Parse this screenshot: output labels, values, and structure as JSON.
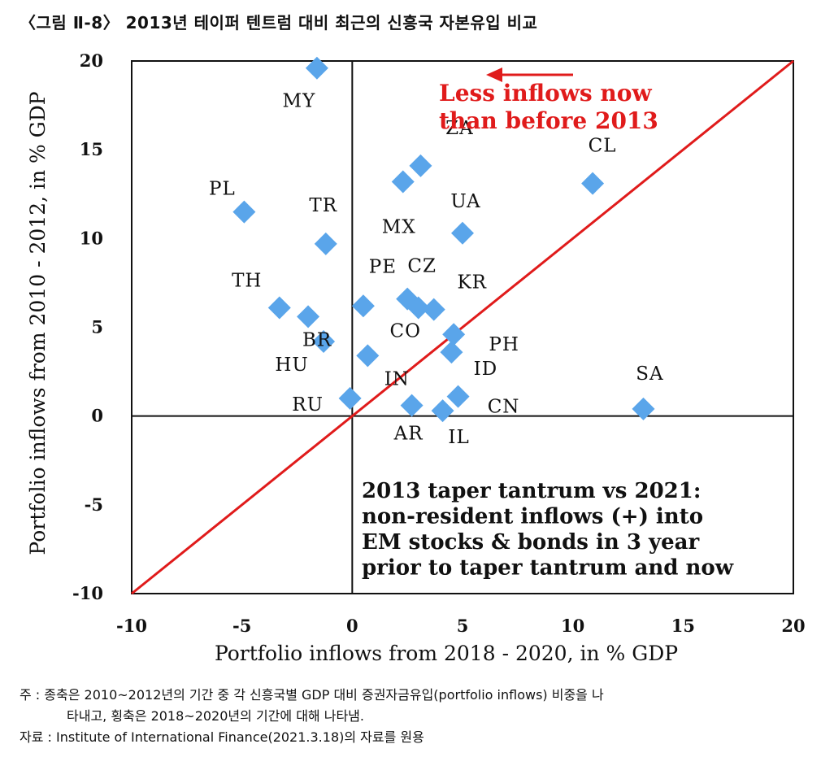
{
  "title": "〈그림 Ⅱ-8〉 2013년 테이퍼 텐트럼 대비 최근의 신흥국 자본유입 비교",
  "colors": {
    "point": "#5aa5ea",
    "diagonal": "#e01b1b",
    "annotation": "#e01b1b",
    "axis": "#111111"
  },
  "chart_data": {
    "type": "scatter",
    "xlabel": "Portfolio inflows from 2018 - 2020, in % GDP",
    "ylabel": "Portfolio inflows from 2010 - 2012, in % GDP",
    "xlim": [
      -10,
      20
    ],
    "ylim": [
      -10,
      20
    ],
    "xticks": [
      "-10",
      "-5",
      "0",
      "5",
      "10",
      "15",
      "20"
    ],
    "yticks": [
      "20",
      "15",
      "10",
      "5",
      "0",
      "-5",
      "-10"
    ],
    "grid": false,
    "reference_line": "y = x",
    "points": [
      {
        "label": "MY",
        "x": -1.6,
        "y": 19.6
      },
      {
        "label": "ZA",
        "x": 3.1,
        "y": 14.1
      },
      {
        "label": "MX",
        "x": 2.3,
        "y": 13.2
      },
      {
        "label": "CL",
        "x": 10.9,
        "y": 13.1
      },
      {
        "label": "PL",
        "x": -4.9,
        "y": 11.5
      },
      {
        "label": "UA",
        "x": 5.0,
        "y": 10.3
      },
      {
        "label": "TR",
        "x": -1.2,
        "y": 9.7
      },
      {
        "label": "PE",
        "x": 0.5,
        "y": 6.2
      },
      {
        "label": "CZ",
        "x": 2.5,
        "y": 6.6
      },
      {
        "label": "KR",
        "x": 3.7,
        "y": 6.0
      },
      {
        "label": "CO",
        "x": 3.0,
        "y": 6.1
      },
      {
        "label": "TH",
        "x": -3.3,
        "y": 6.1
      },
      {
        "label": "BR",
        "x": -2.0,
        "y": 5.6
      },
      {
        "label": "PH",
        "x": 4.6,
        "y": 4.6
      },
      {
        "label": "HU",
        "x": -1.3,
        "y": 4.2
      },
      {
        "label": "ID",
        "x": 4.5,
        "y": 3.6
      },
      {
        "label": "IN",
        "x": 0.7,
        "y": 3.4
      },
      {
        "label": "CN",
        "x": 4.8,
        "y": 1.1
      },
      {
        "label": "RU",
        "x": -0.1,
        "y": 1.0
      },
      {
        "label": "AR",
        "x": 2.7,
        "y": 0.6
      },
      {
        "label": "IL",
        "x": 4.1,
        "y": 0.3
      },
      {
        "label": "SA",
        "x": 13.2,
        "y": 0.4
      }
    ],
    "annotations": {
      "arrow_note": [
        "Less inflows now",
        "than before 2013"
      ],
      "box_note": [
        "2013 taper tantrum vs 2021:",
        "non-resident inflows (+) into",
        "EM stocks & bonds in 3 year",
        "prior to taper tantrum and now"
      ]
    }
  },
  "notes": {
    "line1": "주 : 종축은 2010~2012년의 기간 중 각 신흥국별 GDP 대비 증권자금유입(portfolio inflows) 비중을 나",
    "line2": "타내고, 횡축은 2018~2020년의 기간에 대해 나타냄.",
    "line3": "자료 : Institute of International Finance(2021.3.18)의 자료를 원용"
  }
}
